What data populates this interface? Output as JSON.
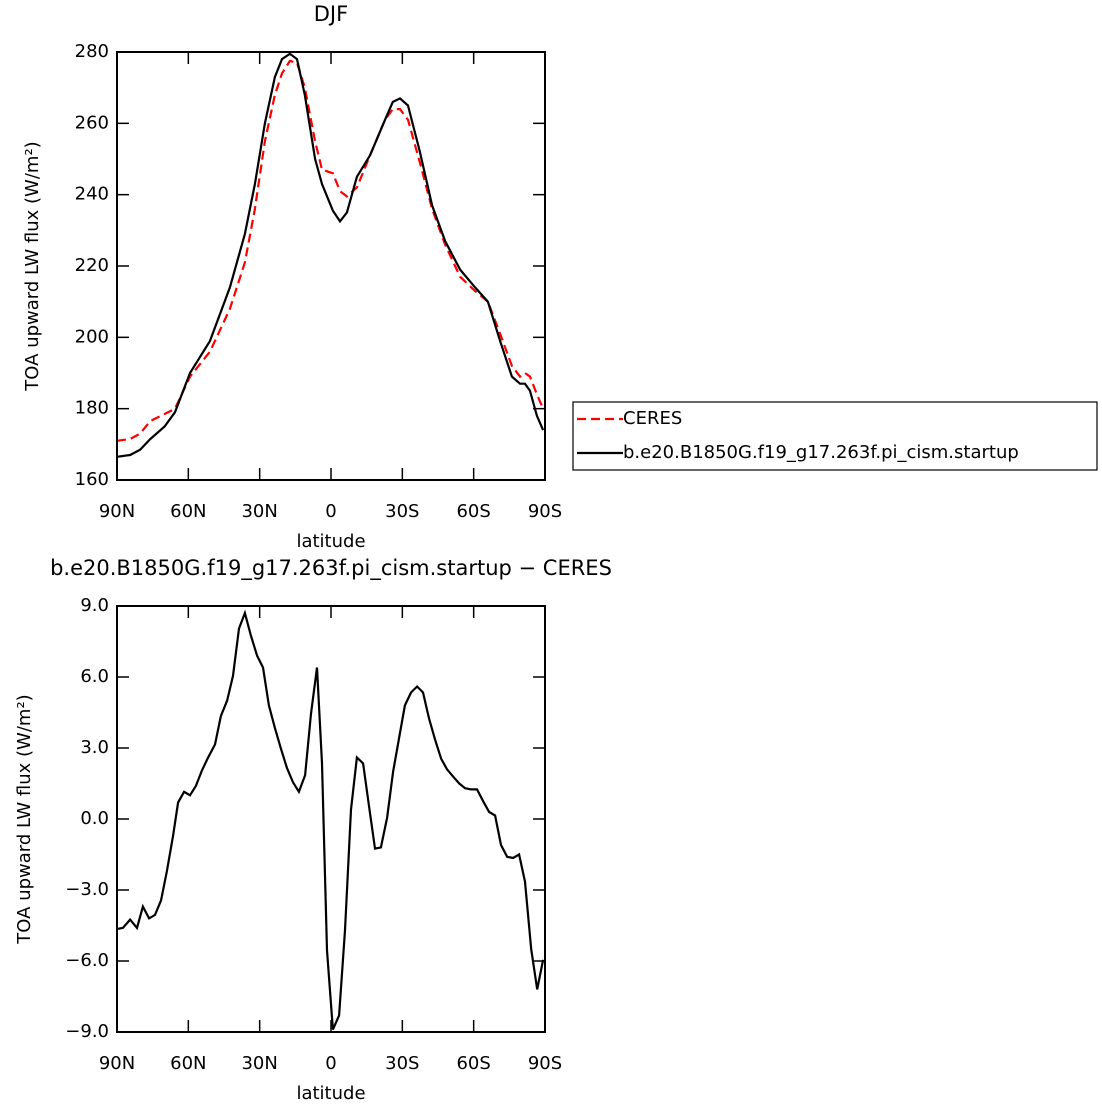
{
  "chart_data": [
    {
      "type": "line",
      "title": "DJF",
      "xlabel": "latitude",
      "ylabel": "TOA upward LW flux (W/m²)",
      "x": [
        90,
        84.5,
        80.3,
        76,
        70,
        65.6,
        59.3,
        50.9,
        42.5,
        36.2,
        32,
        27.8,
        23.6,
        20.6,
        17.3,
        14.3,
        11,
        6.7,
        3.8,
        -0.8,
        -3.8,
        -6.7,
        -10.9,
        -16.4,
        -22.7,
        -26,
        -29,
        -32.4,
        -37.4,
        -42.5,
        -48,
        -54.3,
        -60.6,
        -66,
        -71.1,
        -76.1,
        -79.5,
        -81.6,
        -83.7,
        -86.6,
        -89.2
      ],
      "series": [
        {
          "name": "CERES",
          "color": "#ff0000",
          "line_style": "dashed",
          "values": [
            171,
            171.5,
            173,
            176.5,
            178.5,
            180,
            189,
            196,
            208,
            221,
            236,
            255,
            268,
            274,
            277.5,
            277,
            270,
            255,
            247,
            246,
            241,
            239.5,
            242,
            251,
            261,
            264,
            264,
            261,
            249,
            236,
            226,
            217,
            213,
            210,
            201,
            192,
            189,
            190,
            189,
            184,
            180
          ]
        },
        {
          "name": "b.e20.B1850G.f19_g17.263f.pi_cism.startup",
          "color": "#000000",
          "line_style": "solid",
          "values": [
            166.5,
            167,
            168.5,
            171.5,
            175,
            179,
            190,
            199,
            214,
            229,
            243,
            260,
            273,
            278,
            279.5,
            278,
            268,
            250,
            243,
            235.5,
            232.5,
            235,
            245,
            251,
            261,
            266,
            267,
            265,
            252,
            237,
            227,
            219,
            214,
            210,
            199,
            189,
            187,
            187,
            185,
            178,
            174
          ]
        }
      ],
      "xlim": [
        90,
        -90
      ],
      "xticks": [
        {
          "value": 90,
          "label": "90N"
        },
        {
          "value": 60,
          "label": "60N"
        },
        {
          "value": 30,
          "label": "30N"
        },
        0,
        {
          "value": -30,
          "label": "30S"
        },
        {
          "value": -60,
          "label": "60S"
        },
        {
          "value": -90,
          "label": "90S"
        }
      ],
      "ylim": [
        160,
        280
      ],
      "yticks": [
        160,
        180,
        200,
        220,
        240,
        260,
        280
      ],
      "legend": "right"
    },
    {
      "type": "line",
      "title": "b.e20.B1850G.f19_g17.263f.pi_cism.startup − CERES",
      "xlabel": "latitude",
      "ylabel": "TOA upward LW flux (W/m²)",
      "x": [
        90,
        87.5,
        84.5,
        81.6,
        79.1,
        76.5,
        74,
        71.5,
        69,
        66.4,
        64.3,
        61.8,
        59.3,
        56.8,
        54.3,
        51.7,
        48.8,
        46.3,
        43.7,
        41.2,
        38.7,
        36.2,
        33.7,
        31.1,
        28.6,
        26.1,
        23.6,
        21,
        18.5,
        16,
        13.5,
        10.9,
        8.4,
        5.9,
        3.8,
        1.7,
        -0.8,
        -3.4,
        -5.9,
        -8.4,
        -10.9,
        -13.5,
        -16,
        -18.5,
        -21,
        -23.6,
        -26.1,
        -28.6,
        -31.1,
        -33.7,
        -36.2,
        -38.7,
        -41.2,
        -43.8,
        -46.3,
        -48.8,
        -51.3,
        -53.9,
        -56.4,
        -58.9,
        -61.4,
        -64,
        -66.5,
        -69,
        -71.5,
        -74.1,
        -76.6,
        -79.1,
        -81.6,
        -84.2,
        -86.7,
        -89.2
      ],
      "series": [
        {
          "name": "b.e20.B1850G.f19_g17.263f.pi_cism.startup − CERES",
          "color": "#000000",
          "line_style": "solid",
          "values": [
            -4.65,
            -4.6,
            -4.25,
            -4.6,
            -3.7,
            -4.2,
            -4.05,
            -3.45,
            -2.2,
            -0.7,
            0.7,
            1.15,
            1.0,
            1.4,
            2.05,
            2.6,
            3.15,
            4.35,
            5.0,
            6.05,
            8.05,
            8.7,
            7.75,
            6.9,
            6.4,
            4.8,
            3.85,
            2.95,
            2.15,
            1.55,
            1.15,
            1.85,
            4.45,
            6.4,
            2.35,
            -5.55,
            -8.9,
            -8.3,
            -4.7,
            0.4,
            2.6,
            2.35,
            0.55,
            -1.25,
            -1.2,
            0.05,
            2.0,
            3.4,
            4.8,
            5.35,
            5.6,
            5.35,
            4.25,
            3.35,
            2.55,
            2.1,
            1.8,
            1.5,
            1.3,
            1.25,
            1.25,
            0.75,
            0.3,
            0.15,
            -1.1,
            -1.6,
            -1.65,
            -1.5,
            -2.65,
            -5.5,
            -7.2,
            -5.95
          ]
        }
      ],
      "xlim": [
        90,
        -90
      ],
      "xticks": [
        {
          "value": 90,
          "label": "90N"
        },
        {
          "value": 60,
          "label": "60N"
        },
        {
          "value": 30,
          "label": "30N"
        },
        0,
        {
          "value": -30,
          "label": "30S"
        },
        {
          "value": -60,
          "label": "60S"
        },
        {
          "value": -90,
          "label": "90S"
        }
      ],
      "ylim": [
        -9,
        9
      ],
      "yticks": [
        {
          "value": -9,
          "label": "−9.0"
        },
        {
          "value": -6,
          "label": "−6.0"
        },
        {
          "value": -3,
          "label": "−3.0"
        },
        {
          "value": 0,
          "label": "0.0"
        },
        {
          "value": 3,
          "label": "3.0"
        },
        {
          "value": 6,
          "label": "6.0"
        },
        {
          "value": 9,
          "label": "9.0"
        }
      ]
    }
  ]
}
